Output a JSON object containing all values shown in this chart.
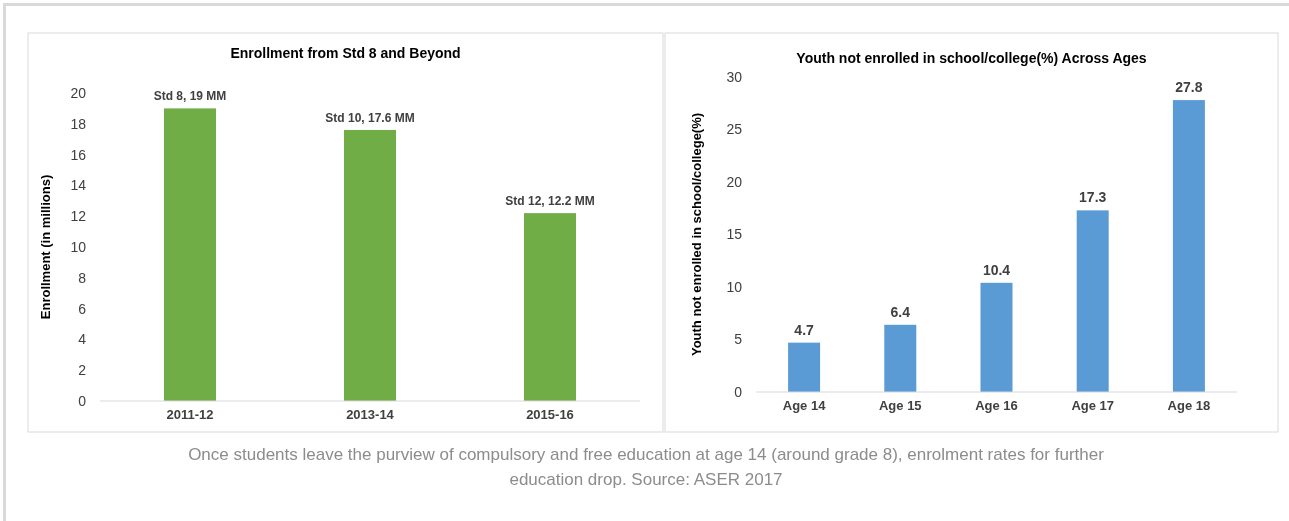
{
  "chart_data": [
    {
      "type": "bar",
      "title": "Enrollment from  Std 8 and Beyond",
      "ylabel": "Enrollment (in millions)",
      "categories": [
        "2011-12",
        "2013-14",
        "2015-16"
      ],
      "values": [
        19,
        17.6,
        12.2
      ],
      "value_labels": [
        "Std 8, 19 MM",
        "Std 10, 17.6 MM",
        "Std 12, 12.2 MM"
      ],
      "color": "#70ad47",
      "ylim": [
        0,
        20
      ],
      "yticks": [
        0,
        2,
        4,
        6,
        8,
        10,
        12,
        14,
        16,
        18,
        20
      ],
      "grid": false,
      "annotations": [
        "Once students leave the purview of compulsory and free education at age 14 (around grade 8), enrolment rates for further education drop. Source: ASER 2017"
      ]
    },
    {
      "type": "bar",
      "title": "Youth not enrolled in school/college(%)  Across  Ages",
      "ylabel": "Youth not enrolled in school/college(%)",
      "categories": [
        "Age 14",
        "Age 15",
        "Age 16",
        "Age 17",
        "Age 18"
      ],
      "values": [
        4.7,
        6.4,
        10.4,
        17.3,
        27.8
      ],
      "data_labels": true,
      "color": "#5b9bd5",
      "ylim": [
        0,
        30
      ],
      "yticks": [
        0,
        5,
        10,
        15,
        20,
        25,
        30
      ],
      "grid": false
    }
  ]
}
